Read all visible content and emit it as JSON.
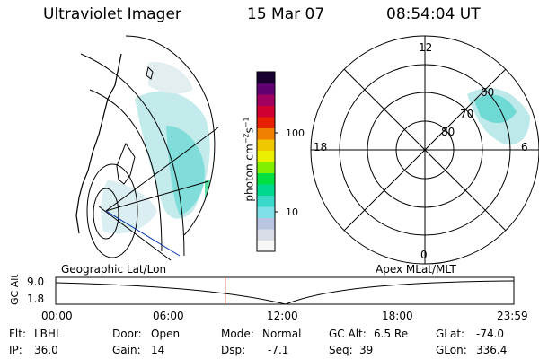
{
  "header": {
    "instrument": "Ultraviolet Imager",
    "date": "15 Mar 07",
    "time": "08:54:04 UT"
  },
  "colorbar": {
    "unit_label": "photon cm",
    "unit_sup1": "−2",
    "unit_mid": "s",
    "unit_sup2": "−1",
    "ticks": [
      "100",
      "10"
    ],
    "colors": [
      "#f7f7f7",
      "#d8dde8",
      "#b9c4e0",
      "#7fe0e8",
      "#3ad8c8",
      "#00d890",
      "#00e040",
      "#80f000",
      "#e8f000",
      "#f0c800",
      "#f08000",
      "#e82000",
      "#d00030",
      "#a00060",
      "#600070",
      "#1a0030"
    ]
  },
  "left_panel": {
    "label": "Geographic Lat/Lon"
  },
  "right_panel": {
    "label": "Apex MLat/MLT",
    "mlt_labels": [
      "12",
      "18",
      "6",
      "0"
    ],
    "mlat_labels": [
      "60",
      "70",
      "80"
    ]
  },
  "timeline": {
    "ylabel": "GC Alt",
    "yticks": [
      "9.0",
      "1.8"
    ],
    "xticks": [
      "00:00",
      "06:00",
      "12:00",
      "18:00",
      "23:59"
    ],
    "current_time_fraction": 0.37
  },
  "info": {
    "filter_label": "Flt:",
    "filter_value": "LBHL",
    "ip_label": "IP:",
    "ip_value": "36.0",
    "door_label": "Door:",
    "door_value": "Open",
    "gain_label": "Gain:",
    "gain_value": "14",
    "mode_label": "Mode:",
    "mode_value": "Normal",
    "dsp_label": "Dsp:",
    "dsp_value": "-7.1",
    "gcalt_label": "GC Alt:",
    "gcalt_value": "6.5 Re",
    "seq_label": "Seq:",
    "seq_value": "39",
    "glat_label": "GLat:",
    "glat_value": "-74.0",
    "glon_label": "GLon:",
    "glon_value": "336.4"
  }
}
